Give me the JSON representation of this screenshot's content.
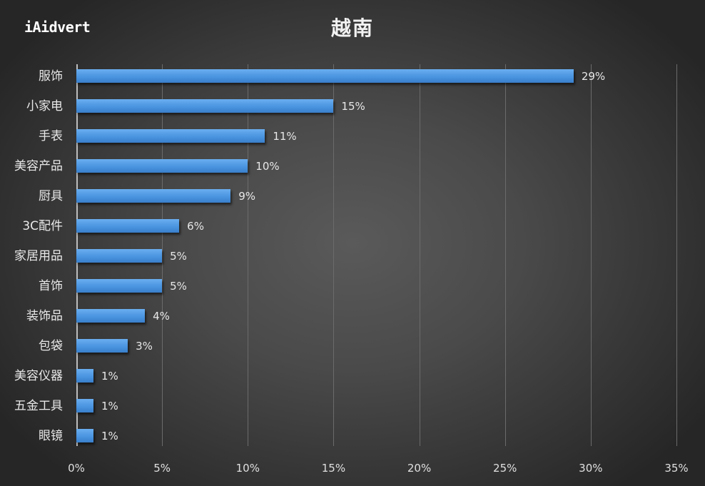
{
  "logo": {
    "text": "iAidvert"
  },
  "title": "越南",
  "colors": {
    "bar": "#4a94e0",
    "background_center": "#5a5a5a",
    "background_edge": "#262626",
    "text": "#e8e8e8",
    "gridline": "#6b6b6b"
  },
  "chart_data": {
    "type": "bar",
    "orientation": "horizontal",
    "title": "越南",
    "xlabel": "",
    "ylabel": "",
    "xlim": [
      0,
      35
    ],
    "x_ticks": [
      "0%",
      "5%",
      "10%",
      "15%",
      "20%",
      "25%",
      "30%",
      "35%"
    ],
    "grid": true,
    "legend": null,
    "categories": [
      "服饰",
      "小家电",
      "手表",
      "美容产品",
      "厨具",
      "3C配件",
      "家居用品",
      "首饰",
      "装饰品",
      "包袋",
      "美容仪器",
      "五金工具",
      "眼镜"
    ],
    "values": [
      29,
      15,
      11,
      10,
      9,
      6,
      5,
      5,
      4,
      3,
      1,
      1,
      1
    ],
    "value_labels": [
      "29%",
      "15%",
      "11%",
      "10%",
      "9%",
      "6%",
      "5%",
      "5%",
      "4%",
      "3%",
      "1%",
      "1%",
      "1%"
    ],
    "unit": "%"
  }
}
